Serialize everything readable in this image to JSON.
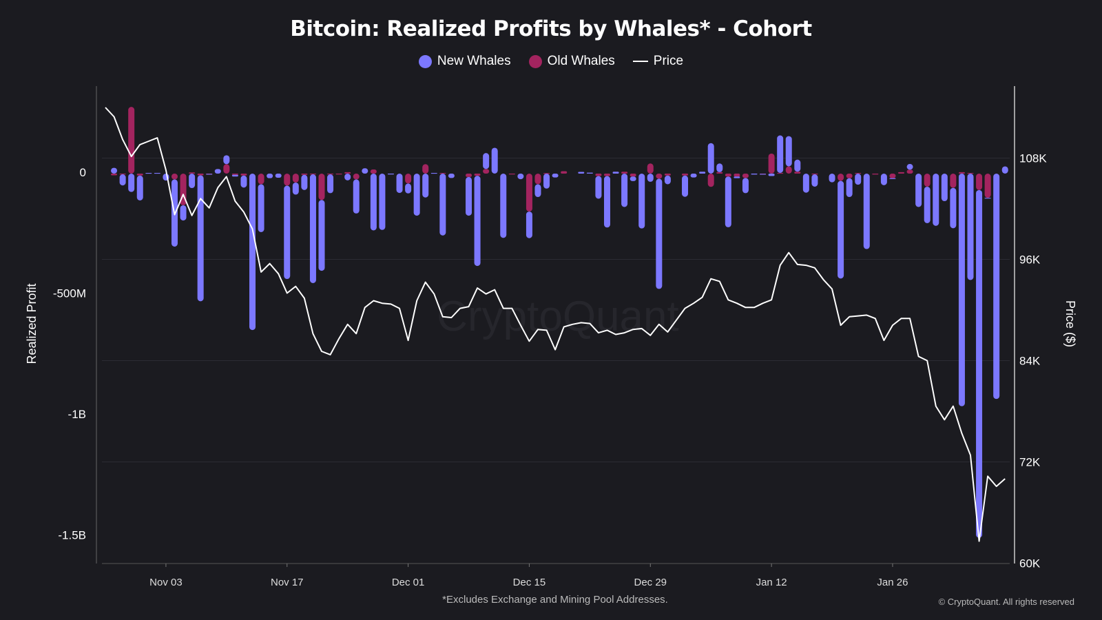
{
  "chart_data": {
    "type": "bar",
    "title": "Bitcoin: Realized Profits by Whales* - Cohort",
    "footnote": "*Excludes Exchange and Mining Pool Addresses.",
    "copyright": "© CryptoQuant. All rights reserved",
    "watermark": "CryptoQuant",
    "legend": [
      {
        "name": "New Whales",
        "type": "bar",
        "color": "#7c78ff"
      },
      {
        "name": "Old Whales",
        "type": "bar",
        "color": "#a3245f"
      },
      {
        "name": "Price",
        "type": "line",
        "color": "#ffffff"
      }
    ],
    "legend_position": "top-center",
    "ylabel": "Realized Profit",
    "y2label": "Price ($)",
    "ylim": [
      -1600,
      300
    ],
    "y2lim": [
      60000,
      124000
    ],
    "yticks": [
      {
        "value": 0,
        "label": "0"
      },
      {
        "value": -500,
        "label": "-500M"
      },
      {
        "value": -1000,
        "label": "-1B"
      },
      {
        "value": -1500,
        "label": "-1.5B"
      }
    ],
    "y2ticks": [
      {
        "value": 108000,
        "label": "108K"
      },
      {
        "value": 96000,
        "label": "96K"
      },
      {
        "value": 84000,
        "label": "84K"
      },
      {
        "value": 72000,
        "label": "72K"
      },
      {
        "value": 60000,
        "label": "60K"
      }
    ],
    "xticks": [
      "Nov 03",
      "Nov 17",
      "Dec 01",
      "Dec 15",
      "Dec 29",
      "Jan 12",
      "Jan 26"
    ],
    "grid": true,
    "units": "USD millions (bars), USD (price)",
    "x": [
      "Oct 27",
      "Oct 28",
      "Oct 29",
      "Oct 30",
      "Oct 31",
      "Nov 01",
      "Nov 02",
      "Nov 03",
      "Nov 04",
      "Nov 05",
      "Nov 06",
      "Nov 07",
      "Nov 08",
      "Nov 09",
      "Nov 10",
      "Nov 11",
      "Nov 12",
      "Nov 13",
      "Nov 14",
      "Nov 15",
      "Nov 16",
      "Nov 17",
      "Nov 18",
      "Nov 19",
      "Nov 20",
      "Nov 21",
      "Nov 22",
      "Nov 23",
      "Nov 24",
      "Nov 25",
      "Nov 26",
      "Nov 27",
      "Nov 28",
      "Nov 29",
      "Nov 30",
      "Dec 01",
      "Dec 02",
      "Dec 03",
      "Dec 04",
      "Dec 05",
      "Dec 06",
      "Dec 07",
      "Dec 08",
      "Dec 09",
      "Dec 10",
      "Dec 11",
      "Dec 12",
      "Dec 13",
      "Dec 14",
      "Dec 15",
      "Dec 16",
      "Dec 17",
      "Dec 18",
      "Dec 19",
      "Dec 20",
      "Dec 21",
      "Dec 22",
      "Dec 23",
      "Dec 24",
      "Dec 25",
      "Dec 26",
      "Dec 27",
      "Dec 28",
      "Dec 29",
      "Dec 30",
      "Dec 31",
      "Jan 01",
      "Jan 02",
      "Jan 03",
      "Jan 04",
      "Jan 05",
      "Jan 06",
      "Jan 07",
      "Jan 08",
      "Jan 09",
      "Jan 10",
      "Jan 11",
      "Jan 12",
      "Jan 13",
      "Jan 14",
      "Jan 15",
      "Jan 16",
      "Jan 17",
      "Jan 18",
      "Jan 19",
      "Jan 20",
      "Jan 21",
      "Jan 22",
      "Jan 23",
      "Jan 24",
      "Jan 25",
      "Jan 26",
      "Jan 27",
      "Jan 28",
      "Jan 29",
      "Jan 30",
      "Jan 31",
      "Feb 01",
      "Feb 02",
      "Feb 03",
      "Feb 04",
      "Feb 05",
      "Feb 06",
      "Feb 07",
      "Feb 08"
    ],
    "series": [
      {
        "name": "New Whales",
        "values": [
          null,
          24,
          -46,
          -76,
          -103,
          3,
          3,
          -29,
          -278,
          -63,
          -60,
          -521,
          -1,
          19,
          37,
          -7,
          -50,
          -647,
          -198,
          -19,
          -17,
          -386,
          -50,
          -63,
          -450,
          -293,
          -78,
          0,
          -28,
          -141,
          22,
          -235,
          -233,
          -1,
          -80,
          -41,
          -174,
          -99,
          3,
          -256,
          -18,
          0,
          -160,
          -373,
          66,
          107,
          -266,
          0,
          -23,
          -110,
          -53,
          -62,
          -16,
          0,
          0,
          7,
          4,
          -94,
          -213,
          8,
          -138,
          -19,
          -227,
          -34,
          -456,
          -36,
          0,
          -88,
          -16,
          8,
          126,
          36,
          -210,
          -7,
          -63,
          -4,
          -1,
          -10,
          155,
          125,
          50,
          -79,
          -51,
          0,
          -36,
          -404,
          -78,
          -46,
          -312,
          0,
          -48,
          -3,
          0,
          24,
          -138,
          -151,
          -216,
          -114,
          -167,
          -962,
          -440,
          -1438,
          -3,
          -932,
          30
        ]
      },
      {
        "name": "Old Whales",
        "values": [
          null,
          -7,
          -3,
          276,
          -8,
          0,
          0,
          0,
          -24,
          -131,
          5,
          -7,
          -1,
          0,
          39,
          -5,
          -8,
          0,
          -44,
          0,
          0,
          -50,
          -37,
          -5,
          -3,
          -109,
          -3,
          -1,
          6,
          -24,
          0,
          17,
          0,
          0,
          0,
          -41,
          0,
          39,
          0,
          3,
          0,
          0,
          -14,
          -9,
          19,
          0,
          0,
          -1,
          0,
          -157,
          -44,
          2,
          0,
          10,
          0,
          0,
          0,
          -10,
          -10,
          0,
          8,
          -12,
          0,
          42,
          -21,
          -8,
          0,
          -8,
          0,
          0,
          -55,
          6,
          -12,
          -12,
          -18,
          0,
          -1,
          83,
          3,
          30,
          8,
          0,
          -3,
          0,
          0,
          -30,
          -19,
          3,
          0,
          -4,
          0,
          -19,
          6,
          16,
          0,
          -54,
          0,
          0,
          -59,
          6,
          3,
          -68,
          -100,
          0,
          0
        ]
      },
      {
        "name": "Price",
        "axis": "right",
        "values": [
          114000,
          112900,
          110200,
          108200,
          109600,
          110000,
          110400,
          106600,
          101300,
          103700,
          101200,
          103200,
          102100,
          104500,
          105800,
          102900,
          101600,
          99600,
          94500,
          95500,
          94300,
          92000,
          92800,
          91400,
          87200,
          85100,
          84700,
          86600,
          88300,
          87200,
          90300,
          91100,
          90800,
          90700,
          90200,
          86400,
          91100,
          93300,
          91900,
          89200,
          89100,
          90200,
          90400,
          92600,
          91900,
          92400,
          90200,
          90200,
          88200,
          86300,
          87700,
          87600,
          85300,
          88000,
          88300,
          88500,
          88400,
          87300,
          87600,
          87100,
          87300,
          87700,
          87800,
          87000,
          88300,
          87400,
          88800,
          90200,
          90800,
          91500,
          93700,
          93400,
          91200,
          90800,
          90300,
          90300,
          90800,
          91200,
          95300,
          96800,
          95400,
          95300,
          95000,
          93600,
          92500,
          88200,
          89200,
          89300,
          89400,
          89000,
          86400,
          88200,
          89000,
          89000,
          84500,
          84000,
          78600,
          77000,
          78600,
          75400,
          72800,
          62600,
          70300,
          69100,
          70000
        ]
      }
    ]
  }
}
